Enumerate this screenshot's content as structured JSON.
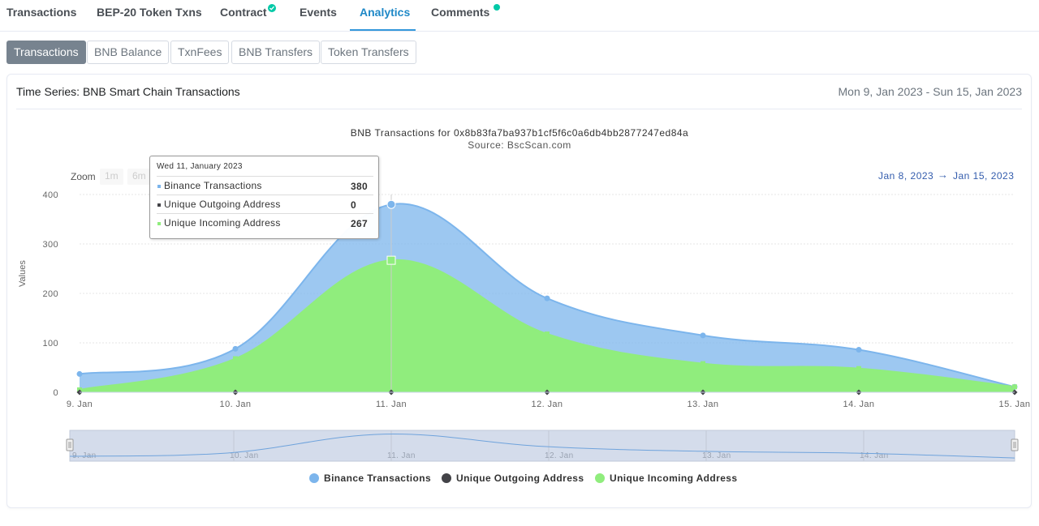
{
  "tabs": {
    "transactions": "Transactions",
    "token_txns": "BEP-20 Token Txns",
    "contract": "Contract",
    "events": "Events",
    "analytics": "Analytics",
    "comments": "Comments"
  },
  "subtabs": {
    "transactions": "Transactions",
    "bnb_balance": "BNB Balance",
    "txnfees": "TxnFees",
    "bnb_transfers": "BNB Transfers",
    "token_transfers": "Token Transfers"
  },
  "card": {
    "title": "Time Series: BNB Smart Chain Transactions",
    "date_range": "Mon 9, Jan 2023 - Sun 15, Jan 2023"
  },
  "chart_controls": {
    "zoom_label": "Zoom",
    "zoom_1m": "1m",
    "zoom_6m": "6m",
    "range_from": "Jan 8, 2023",
    "range_arrow": "→",
    "range_to": "Jan 15, 2023"
  },
  "tooltip": {
    "date": "Wed 11, January 2023",
    "rows": [
      {
        "name": "Binance Transactions",
        "value": "380"
      },
      {
        "name": "Unique Outgoing Address",
        "value": "0"
      },
      {
        "name": "Unique Incoming Address",
        "value": "267"
      }
    ]
  },
  "colors": {
    "binance": "#7cb5ec",
    "outgoing": "#434348",
    "incoming": "#90ed7d",
    "accent": "#3498db"
  },
  "chart_data": {
    "type": "area",
    "title": "BNB Transactions for 0x8b83fa7ba937b1cf5f6c0a6db4bb2877247ed84a",
    "subtitle": "Source: BscScan.com",
    "ylabel": "Values",
    "xlabel": "",
    "ylim": [
      0,
      400
    ],
    "yticks": [
      0,
      100,
      200,
      300,
      400
    ],
    "categories": [
      "9. Jan",
      "10. Jan",
      "11. Jan",
      "12. Jan",
      "13. Jan",
      "14. Jan",
      "15. Jan"
    ],
    "series": [
      {
        "name": "Binance Transactions",
        "values": [
          37,
          88,
          380,
          190,
          115,
          86,
          11
        ]
      },
      {
        "name": "Unique Outgoing Address",
        "values": [
          0,
          0,
          0,
          0,
          0,
          0,
          0
        ]
      },
      {
        "name": "Unique Incoming Address",
        "values": [
          5,
          68,
          267,
          118,
          58,
          48,
          11
        ]
      }
    ],
    "grid": true,
    "legend": "bottom-center"
  }
}
